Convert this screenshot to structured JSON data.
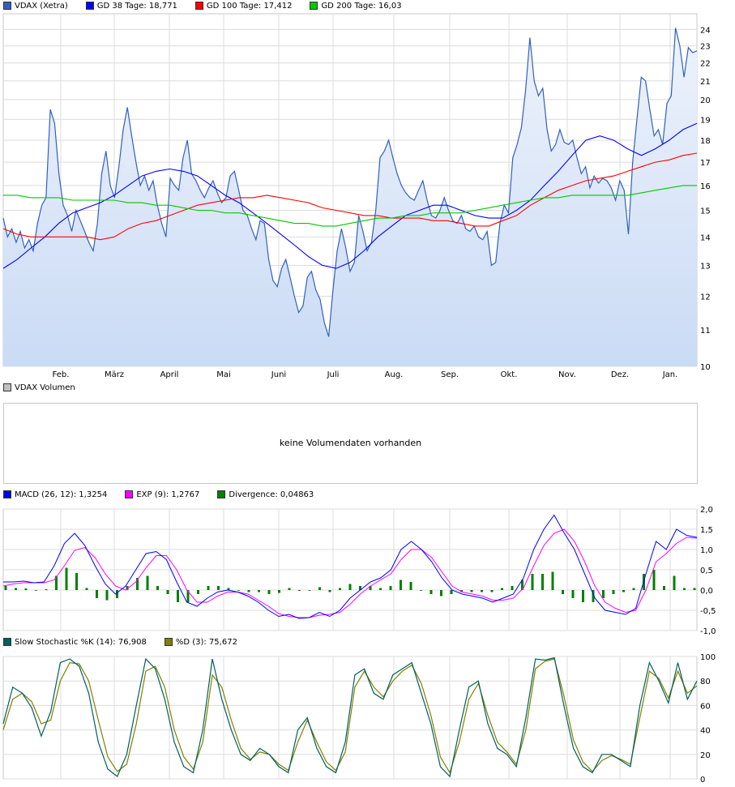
{
  "legends": {
    "price": [
      {
        "label": "VDAX (Xetra)",
        "color": "#3060c0"
      },
      {
        "label": "GD 38 Tage: 18,771",
        "color": "#0000ff"
      },
      {
        "label": "GD 100 Tage: 17,412",
        "color": "#ff0000"
      },
      {
        "label": "GD 200 Tage: 16,03",
        "color": "#00c800"
      }
    ],
    "volume": [
      {
        "label": "VDAX Volumen",
        "color": "#c0c0c0"
      }
    ],
    "macd": [
      {
        "label": "MACD (26, 12): 1,3254",
        "color": "#0000ff"
      },
      {
        "label": "EXP (9): 1,2767",
        "color": "#ff00ff"
      },
      {
        "label": "Divergence: 0,04863",
        "color": "#008000"
      }
    ],
    "stoch": [
      {
        "label": "Slow Stochastic %K (14): 76,908",
        "color": "#006060"
      },
      {
        "label": "%D (3): 75,672",
        "color": "#808000"
      }
    ]
  },
  "volume_panel": {
    "message": "keine Volumendaten vorhanden"
  },
  "chart_data": [
    {
      "type": "area",
      "panel": "price",
      "x_labels": [
        "Feb.",
        "März",
        "April",
        "Mai",
        "Juni",
        "Juli",
        "Aug.",
        "Sep.",
        "Okt.",
        "Nov.",
        "Dez.",
        "Jan."
      ],
      "y_ticks": [
        10,
        11,
        12,
        13,
        14,
        15,
        16,
        17,
        18,
        19,
        20,
        21,
        22,
        23,
        24
      ],
      "y_scale": "log",
      "ylim": [
        10,
        25
      ],
      "grid": true,
      "series": [
        {
          "name": "VDAX (Xetra)",
          "color": "#3060c0",
          "values": [
            14.7,
            14.0,
            14.3,
            13.8,
            14.2,
            13.6,
            13.9,
            13.5,
            14.5,
            15.2,
            15.5,
            19.5,
            18.8,
            16.5,
            15.2,
            14.8,
            14.2,
            15.0,
            14.6,
            14.2,
            13.8,
            13.5,
            14.5,
            16.5,
            17.5,
            16.0,
            15.5,
            16.8,
            18.5,
            19.6,
            18.2,
            17.0,
            16.0,
            16.4,
            15.8,
            16.2,
            15.2,
            14.5,
            14.0,
            16.3,
            16.0,
            15.8,
            17.2,
            18.0,
            16.5,
            16.2,
            15.8,
            15.5,
            15.9,
            16.2,
            15.7,
            15.3,
            15.5,
            16.4,
            16.6,
            15.8,
            15.0,
            14.8,
            14.3,
            13.9,
            14.6,
            14.5,
            13.2,
            12.5,
            12.3,
            12.9,
            13.2,
            12.6,
            12.0,
            11.5,
            11.7,
            12.6,
            12.8,
            12.2,
            11.9,
            11.2,
            10.8,
            12.2,
            13.5,
            14.3,
            13.6,
            12.8,
            13.1,
            14.8,
            14.2,
            13.5,
            13.8,
            15.0,
            17.2,
            17.5,
            18.0,
            17.2,
            16.5,
            16.0,
            15.7,
            15.5,
            15.4,
            15.8,
            16.2,
            15.4,
            14.8,
            14.7,
            15.0,
            15.5,
            15.0,
            14.6,
            14.5,
            14.8,
            14.3,
            14.2,
            14.4,
            14.0,
            13.9,
            14.2,
            13.0,
            13.1,
            14.5,
            15.2,
            14.9,
            17.2,
            17.8,
            18.6,
            20.5,
            23.5,
            21.0,
            20.2,
            20.6,
            18.5,
            17.5,
            17.8,
            18.5,
            17.9,
            17.8,
            18.0,
            17.2,
            16.5,
            16.8,
            15.9,
            16.4,
            16.1,
            16.3,
            16.2,
            15.9,
            15.4,
            16.2,
            15.8,
            14.1,
            17.0,
            19.0,
            21.2,
            21.0,
            19.5,
            18.2,
            18.5,
            17.8,
            19.8,
            20.2,
            24.1,
            23.0,
            21.2,
            22.9,
            22.6,
            22.7
          ]
        },
        {
          "name": "GD 38 Tage: 18,771",
          "color": "#0000ff",
          "values": [
            12.9,
            13.2,
            13.6,
            14.0,
            14.5,
            14.9,
            15.1,
            15.3,
            15.6,
            16.0,
            16.4,
            16.6,
            16.7,
            16.6,
            16.4,
            16.0,
            15.6,
            15.3,
            14.9,
            14.5,
            14.1,
            13.7,
            13.3,
            13.0,
            12.9,
            13.1,
            13.5,
            14.0,
            14.4,
            14.8,
            15.0,
            15.2,
            15.2,
            15.0,
            14.8,
            14.7,
            14.7,
            15.0,
            15.4,
            16.0,
            16.6,
            17.3,
            18.0,
            18.2,
            18.0,
            17.6,
            17.3,
            17.6,
            18.0,
            18.5,
            18.8
          ]
        },
        {
          "name": "GD 100 Tage: 17,412",
          "color": "#ff0000",
          "values": [
            14.3,
            14.1,
            14.0,
            14.0,
            14.0,
            14.0,
            14.0,
            13.9,
            14.0,
            14.3,
            14.5,
            14.6,
            14.8,
            15.0,
            15.2,
            15.3,
            15.4,
            15.5,
            15.5,
            15.6,
            15.5,
            15.4,
            15.3,
            15.1,
            15.0,
            14.9,
            14.8,
            14.8,
            14.7,
            14.7,
            14.7,
            14.6,
            14.6,
            14.5,
            14.4,
            14.4,
            14.6,
            14.8,
            15.2,
            15.5,
            15.8,
            16.0,
            16.2,
            16.3,
            16.4,
            16.6,
            16.8,
            17.0,
            17.1,
            17.3,
            17.4
          ]
        },
        {
          "name": "GD 200 Tage: 16,03",
          "color": "#00c800",
          "values": [
            15.6,
            15.6,
            15.5,
            15.5,
            15.5,
            15.4,
            15.4,
            15.4,
            15.4,
            15.3,
            15.3,
            15.2,
            15.2,
            15.1,
            15.0,
            15.0,
            14.9,
            14.9,
            14.8,
            14.7,
            14.6,
            14.5,
            14.5,
            14.4,
            14.4,
            14.5,
            14.6,
            14.7,
            14.7,
            14.8,
            14.8,
            14.9,
            14.9,
            14.9,
            15.0,
            15.1,
            15.2,
            15.3,
            15.4,
            15.5,
            15.5,
            15.6,
            15.6,
            15.6,
            15.6,
            15.6,
            15.7,
            15.8,
            15.9,
            16.0,
            16.0
          ]
        }
      ]
    },
    {
      "type": "bar",
      "panel": "volume",
      "x_labels": [],
      "series": []
    },
    {
      "type": "line",
      "panel": "macd",
      "y_ticks": [
        "2,0",
        "1,5",
        "1,0",
        "0,5",
        "0,0",
        "-0,5",
        "-1,0"
      ],
      "y_tick_values": [
        2.0,
        1.5,
        1.0,
        0.5,
        0.0,
        -0.5,
        -1.0
      ],
      "ylim": [
        -1.0,
        2.0
      ],
      "grid": true,
      "series": [
        {
          "name": "MACD (26, 12): 1,3254",
          "color": "#0000ff",
          "values": [
            0.2,
            0.2,
            0.22,
            0.18,
            0.2,
            0.6,
            1.15,
            1.4,
            1.1,
            0.6,
            0.15,
            -0.1,
            0.1,
            0.5,
            0.9,
            0.95,
            0.75,
            0.2,
            -0.3,
            -0.4,
            -0.2,
            -0.05,
            0.0,
            -0.05,
            -0.15,
            -0.3,
            -0.5,
            -0.65,
            -0.6,
            -0.7,
            -0.68,
            -0.55,
            -0.65,
            -0.5,
            -0.2,
            0.0,
            0.2,
            0.3,
            0.5,
            1.0,
            1.2,
            1.0,
            0.7,
            0.3,
            0.0,
            -0.1,
            -0.15,
            -0.2,
            -0.3,
            -0.2,
            -0.1,
            0.3,
            1.0,
            1.5,
            1.85,
            1.4,
            1.0,
            0.4,
            -0.2,
            -0.5,
            -0.55,
            -0.6,
            -0.45,
            0.4,
            1.2,
            1.0,
            1.5,
            1.35,
            1.3
          ]
        },
        {
          "name": "EXP (9): 1,2767",
          "color": "#ff00ff",
          "values": [
            0.1,
            0.15,
            0.18,
            0.18,
            0.18,
            0.25,
            0.6,
            0.98,
            1.05,
            0.8,
            0.4,
            0.1,
            0.0,
            0.2,
            0.55,
            0.85,
            0.85,
            0.5,
            0.0,
            -0.3,
            -0.3,
            -0.15,
            -0.05,
            -0.05,
            -0.1,
            -0.25,
            -0.4,
            -0.58,
            -0.65,
            -0.68,
            -0.68,
            -0.62,
            -0.6,
            -0.55,
            -0.35,
            -0.1,
            0.1,
            0.25,
            0.4,
            0.75,
            1.0,
            1.0,
            0.8,
            0.45,
            0.1,
            -0.05,
            -0.1,
            -0.15,
            -0.25,
            -0.25,
            -0.2,
            0.05,
            0.6,
            1.1,
            1.4,
            1.5,
            1.2,
            0.7,
            0.1,
            -0.3,
            -0.45,
            -0.55,
            -0.5,
            0.0,
            0.7,
            0.9,
            1.15,
            1.3,
            1.28
          ]
        },
        {
          "name": "Divergence: 0,04863",
          "color": "#008000",
          "values": [
            0.1,
            0.05,
            0.04,
            0.0,
            0.02,
            0.35,
            0.55,
            0.42,
            0.05,
            -0.2,
            -0.25,
            -0.2,
            0.1,
            0.3,
            0.35,
            0.1,
            -0.1,
            -0.3,
            -0.3,
            -0.1,
            0.1,
            0.1,
            0.05,
            0.0,
            -0.05,
            -0.05,
            -0.1,
            -0.07,
            0.05,
            -0.02,
            0.0,
            0.07,
            -0.05,
            0.05,
            0.15,
            0.1,
            0.1,
            0.05,
            0.1,
            0.25,
            0.2,
            0.0,
            -0.1,
            -0.15,
            -0.1,
            -0.05,
            -0.05,
            -0.05,
            -0.05,
            0.05,
            0.1,
            0.25,
            0.4,
            0.4,
            0.45,
            -0.1,
            -0.2,
            -0.3,
            -0.3,
            -0.2,
            -0.1,
            -0.05,
            0.05,
            0.4,
            0.5,
            0.1,
            0.35,
            0.05,
            0.05
          ]
        }
      ]
    },
    {
      "type": "line",
      "panel": "stoch",
      "y_ticks": [
        0,
        20,
        40,
        60,
        80,
        100
      ],
      "ylim": [
        0,
        100
      ],
      "grid": true,
      "series": [
        {
          "name": "Slow Stochastic %K (14): 76,908",
          "color": "#006060",
          "values": [
            45,
            75,
            70,
            58,
            35,
            55,
            95,
            98,
            92,
            70,
            30,
            8,
            2,
            20,
            60,
            98,
            90,
            65,
            30,
            10,
            5,
            40,
            98,
            65,
            40,
            20,
            15,
            25,
            20,
            10,
            5,
            40,
            50,
            25,
            10,
            5,
            30,
            85,
            90,
            70,
            65,
            85,
            90,
            95,
            70,
            45,
            10,
            2,
            40,
            75,
            80,
            45,
            25,
            20,
            10,
            50,
            98,
            97,
            99,
            60,
            25,
            10,
            5,
            20,
            20,
            15,
            10,
            60,
            95,
            80,
            62,
            95,
            65,
            80
          ]
        },
        {
          "name": "%D (3): 75,672",
          "color": "#808000",
          "values": [
            40,
            65,
            70,
            63,
            45,
            48,
            80,
            95,
            94,
            80,
            48,
            18,
            6,
            12,
            45,
            88,
            92,
            75,
            40,
            18,
            8,
            30,
            85,
            75,
            48,
            25,
            16,
            22,
            20,
            12,
            7,
            30,
            48,
            30,
            14,
            7,
            22,
            75,
            88,
            75,
            67,
            80,
            88,
            93,
            78,
            52,
            18,
            5,
            30,
            65,
            78,
            52,
            30,
            22,
            12,
            40,
            90,
            96,
            98,
            68,
            32,
            14,
            6,
            15,
            19,
            16,
            12,
            50,
            88,
            82,
            66,
            88,
            70,
            76
          ]
        }
      ]
    }
  ]
}
